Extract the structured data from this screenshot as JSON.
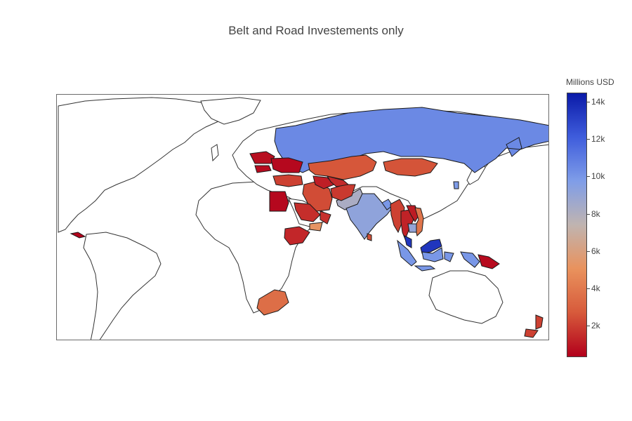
{
  "title": "Belt and Road Investements only",
  "colorbar": {
    "title": "Millions USD",
    "ticks": [
      "14k",
      "12k",
      "10k",
      "8k",
      "6k",
      "4k",
      "2k"
    ],
    "tick_values": [
      14000,
      12000,
      10000,
      8000,
      6000,
      4000,
      2000
    ],
    "range": [
      300,
      14500
    ],
    "colorscale": [
      "#b2001b",
      "#d75a3b",
      "#e9925d",
      "#c0b4b0",
      "#7f9de8",
      "#3f5ddc",
      "#0a1aa8"
    ]
  },
  "colors": {
    "border": "#1a1a1a",
    "land_outline": "#333333",
    "frame": "#6b6b6b"
  },
  "chart_data": {
    "type": "choropleth",
    "title": "Belt and Road Investements only",
    "value_label": "Millions USD",
    "regions": [
      {
        "name": "Russia",
        "value": 10500
      },
      {
        "name": "Kazakhstan",
        "value": 2600
      },
      {
        "name": "Mongolia",
        "value": 2500
      },
      {
        "name": "Iran",
        "value": 2300
      },
      {
        "name": "Pakistan",
        "value": 8200
      },
      {
        "name": "India",
        "value": 9200
      },
      {
        "name": "Bangladesh",
        "value": 10000
      },
      {
        "name": "Myanmar",
        "value": 2000
      },
      {
        "name": "Thailand",
        "value": 1200
      },
      {
        "name": "Laos",
        "value": 1000
      },
      {
        "name": "Vietnam",
        "value": 3800
      },
      {
        "name": "Cambodia",
        "value": 9000
      },
      {
        "name": "Malaysia",
        "value": 13500
      },
      {
        "name": "Indonesia",
        "value": 10000
      },
      {
        "name": "Papua New Guinea",
        "value": 600
      },
      {
        "name": "South Korea",
        "value": 9800
      },
      {
        "name": "Egypt",
        "value": 500
      },
      {
        "name": "Ethiopia",
        "value": 1300
      },
      {
        "name": "South Africa",
        "value": 3500
      },
      {
        "name": "Turkey",
        "value": 2000
      },
      {
        "name": "Saudi Arabia",
        "value": 1500
      },
      {
        "name": "Oman",
        "value": 1600
      },
      {
        "name": "Yemen",
        "value": 5200
      },
      {
        "name": "Sri Lanka",
        "value": 2400
      },
      {
        "name": "New Zealand",
        "value": 2000
      },
      {
        "name": "Panama",
        "value": 400
      },
      {
        "name": "Poland",
        "value": 700
      },
      {
        "name": "Hungary",
        "value": 600
      },
      {
        "name": "Ukraine",
        "value": 500
      },
      {
        "name": "Afghanistan",
        "value": 1800
      },
      {
        "name": "Turkmenistan",
        "value": 1100
      },
      {
        "name": "Uzbekistan",
        "value": 1400
      }
    ]
  }
}
